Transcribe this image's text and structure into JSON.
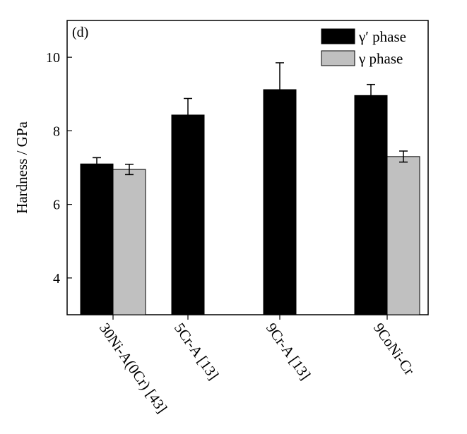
{
  "chart_data": {
    "type": "bar",
    "panel_label": "(d)",
    "ylabel": "Hardness / GPa",
    "xlabel": "",
    "ylim": [
      3,
      11
    ],
    "yticks": [
      4,
      6,
      8,
      10
    ],
    "categories": [
      "30Ni-A(0Cr) [43]",
      "5Cr-A [13]",
      "9Cr-A [13]",
      "9CoNi-Cr"
    ],
    "series": [
      {
        "name": "γ′ phase",
        "color": "#000000",
        "values": [
          7.1,
          8.43,
          9.12,
          8.96
        ],
        "errors": [
          0.17,
          0.45,
          0.73,
          0.3
        ]
      },
      {
        "name": "γ phase",
        "color": "#c0c0c0",
        "values": [
          6.95,
          null,
          null,
          7.3
        ],
        "errors": [
          0.14,
          null,
          null,
          0.15
        ]
      }
    ],
    "legend_position": "top-right",
    "grid": false,
    "error_bars": "upper"
  }
}
